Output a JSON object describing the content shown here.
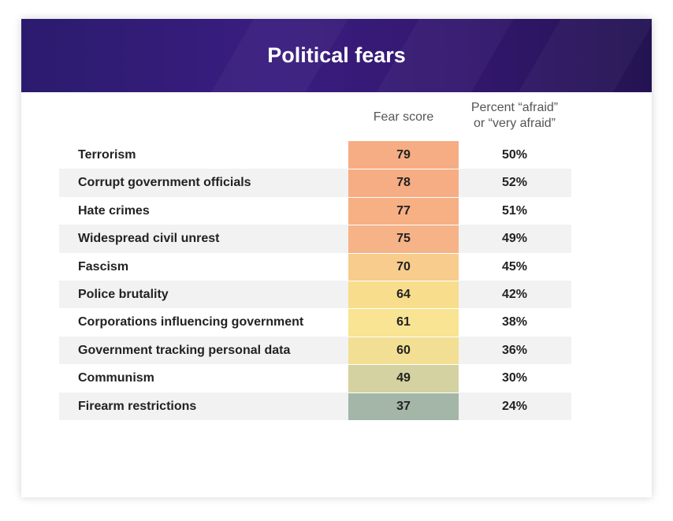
{
  "title": "Political fears",
  "columns": {
    "fear_score": "Fear score",
    "percent_line1": "Percent “afraid”",
    "percent_line2": "or “very afraid”"
  },
  "colors": {
    "header_bg": "#2f1a74",
    "scale": {
      "79": "#f6ad84",
      "78": "#f6ad84",
      "77": "#f6b084",
      "75": "#f6b387",
      "70": "#f8cc8c",
      "64": "#f8dd8d",
      "61": "#f8e492",
      "60": "#f2df94",
      "49": "#d3d2a0",
      "37": "#a3b6a8"
    }
  },
  "chart_data": {
    "type": "table",
    "title": "Political fears",
    "headers": [
      "",
      "Fear score",
      "Percent “afraid” or “very afraid”"
    ],
    "rows": [
      {
        "label": "Terrorism",
        "fear_score": 79,
        "percent": "50%"
      },
      {
        "label": "Corrupt government officials",
        "fear_score": 78,
        "percent": "52%"
      },
      {
        "label": "Hate crimes",
        "fear_score": 77,
        "percent": "51%"
      },
      {
        "label": "Widespread civil unrest",
        "fear_score": 75,
        "percent": "49%"
      },
      {
        "label": "Fascism",
        "fear_score": 70,
        "percent": "45%"
      },
      {
        "label": "Police brutality",
        "fear_score": 64,
        "percent": "42%"
      },
      {
        "label": "Corporations influencing government",
        "fear_score": 61,
        "percent": "38%"
      },
      {
        "label": "Government tracking personal data",
        "fear_score": 60,
        "percent": "36%"
      },
      {
        "label": "Communism",
        "fear_score": 49,
        "percent": "30%"
      },
      {
        "label": "Firearm restrictions",
        "fear_score": 37,
        "percent": "24%"
      }
    ]
  }
}
